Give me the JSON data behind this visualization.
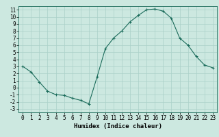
{
  "x": [
    0,
    1,
    2,
    3,
    4,
    5,
    6,
    7,
    8,
    9,
    10,
    11,
    12,
    13,
    14,
    15,
    16,
    17,
    18,
    19,
    20,
    21,
    22,
    23
  ],
  "y": [
    3.0,
    2.2,
    0.8,
    -0.5,
    -1.0,
    -1.1,
    -1.5,
    -1.8,
    -2.3,
    1.5,
    5.5,
    7.0,
    8.0,
    9.3,
    10.2,
    11.0,
    11.1,
    10.8,
    9.8,
    7.0,
    6.0,
    4.4,
    3.2,
    2.8
  ],
  "line_color": "#1a6b5a",
  "marker": "+",
  "marker_size": 3,
  "bg_color": "#cce8e0",
  "grid_color": "#aad0c8",
  "xlabel": "Humidex (Indice chaleur)",
  "xlim": [
    -0.5,
    23.5
  ],
  "ylim": [
    -3.5,
    11.5
  ],
  "xticks": [
    0,
    1,
    2,
    3,
    4,
    5,
    6,
    7,
    8,
    9,
    10,
    11,
    12,
    13,
    14,
    15,
    16,
    17,
    18,
    19,
    20,
    21,
    22,
    23
  ],
  "yticks": [
    -3,
    -2,
    -1,
    0,
    1,
    2,
    3,
    4,
    5,
    6,
    7,
    8,
    9,
    10,
    11
  ],
  "tick_fontsize": 5.5,
  "xlabel_fontsize": 6.5
}
